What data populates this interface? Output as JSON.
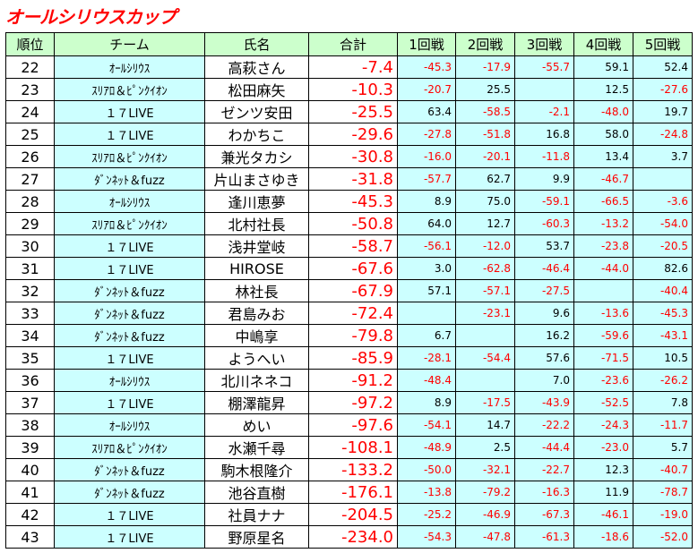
{
  "header": {
    "title": "オールシリウスカップ"
  },
  "table": {
    "columns": [
      "順位",
      "チーム",
      "氏名",
      "合計",
      "1回戦",
      "2回戦",
      "3回戦",
      "4回戦",
      "5回戦"
    ],
    "rows": [
      [
        "22",
        "ｵｰﾙｼﾘｳｽ",
        "高萩さん",
        "-7.4",
        "-45.3",
        "-17.9",
        "-55.7",
        "59.1",
        "52.4"
      ],
      [
        "23",
        "ｽﾘｱﾛ＆ﾋﾟﾝｸｲｵﾝ",
        "松田麻矢",
        "-10.3",
        "-20.7",
        "25.5",
        null,
        "12.5",
        "-27.6"
      ],
      [
        "24",
        "１７LIVE",
        "ゼンツ安田",
        "-25.5",
        "63.4",
        "-58.5",
        "-2.1",
        "-48.0",
        "19.7"
      ],
      [
        "25",
        "１７LIVE",
        "わかちこ",
        "-29.6",
        "-27.8",
        "-51.8",
        "16.8",
        "58.0",
        "-24.8"
      ],
      [
        "26",
        "ｽﾘｱﾛ＆ﾋﾟﾝｸｲｵﾝ",
        "兼光タカシ",
        "-30.8",
        "-16.0",
        "-20.1",
        "-11.8",
        "13.4",
        "3.7"
      ],
      [
        "27",
        "ﾀﾞﾝﾈｯﾄ＆fuzz",
        "片山まさゆき",
        "-31.8",
        "-57.7",
        "62.7",
        "9.9",
        "-46.7",
        null
      ],
      [
        "28",
        "ｵｰﾙｼﾘｳｽ",
        "逢川恵夢",
        "-45.3",
        "8.9",
        "75.0",
        "-59.1",
        "-66.5",
        "-3.6"
      ],
      [
        "29",
        "ｽﾘｱﾛ＆ﾋﾟﾝｸｲｵﾝ",
        "北村社長",
        "-50.8",
        "64.0",
        "12.7",
        "-60.3",
        "-13.2",
        "-54.0"
      ],
      [
        "30",
        "１７LIVE",
        "浅井堂岐",
        "-58.7",
        "-56.1",
        "-12.0",
        "53.7",
        "-23.8",
        "-20.5"
      ],
      [
        "31",
        "１７LIVE",
        "HIROSE",
        "-67.6",
        "3.0",
        "-62.8",
        "-46.4",
        "-44.0",
        "82.6"
      ],
      [
        "32",
        "ﾀﾞﾝﾈｯﾄ＆fuzz",
        "林社長",
        "-67.9",
        "57.1",
        "-57.1",
        "-27.5",
        null,
        "-40.4"
      ],
      [
        "33",
        "ﾀﾞﾝﾈｯﾄ＆fuzz",
        "君島みお",
        "-72.4",
        null,
        "-23.1",
        "9.6",
        "-13.6",
        "-45.3"
      ],
      [
        "34",
        "ﾀﾞﾝﾈｯﾄ＆fuzz",
        "中嶋享",
        "-79.8",
        "6.7",
        null,
        "16.2",
        "-59.6",
        "-43.1"
      ],
      [
        "35",
        "１７LIVE",
        "ようへい",
        "-85.9",
        "-28.1",
        "-54.4",
        "57.6",
        "-71.5",
        "10.5"
      ],
      [
        "36",
        "ｵｰﾙｼﾘｳｽ",
        "北川ネネコ",
        "-91.2",
        "-48.4",
        null,
        "7.0",
        "-23.6",
        "-26.2"
      ],
      [
        "37",
        "１７LIVE",
        "棚澤龍昇",
        "-97.2",
        "8.9",
        "-17.5",
        "-43.9",
        "-52.5",
        "7.8"
      ],
      [
        "38",
        "ｵｰﾙｼﾘｳｽ",
        "めい",
        "-97.6",
        "-54.1",
        "14.7",
        "-22.2",
        "-24.3",
        "-11.7"
      ],
      [
        "39",
        "ｽﾘｱﾛ＆ﾋﾟﾝｸｲｵﾝ",
        "水瀬千尋",
        "-108.1",
        "-48.9",
        "2.5",
        "-44.4",
        "-23.0",
        "5.7"
      ],
      [
        "40",
        "ﾀﾞﾝﾈｯﾄ＆fuzz",
        "駒木根隆介",
        "-133.2",
        "-50.0",
        "-32.1",
        "-22.7",
        "12.3",
        "-40.7"
      ],
      [
        "41",
        "ﾀﾞﾝﾈｯﾄ＆fuzz",
        "池谷直樹",
        "-176.1",
        "-13.8",
        "-79.2",
        "-16.3",
        "11.9",
        "-78.7"
      ],
      [
        "42",
        "１７LIVE",
        "社員ナナ",
        "-204.5",
        "-25.2",
        "-46.9",
        "-67.3",
        "-46.1",
        "-19.0"
      ],
      [
        "43",
        "１７LIVE",
        "野原星名",
        "-234.0",
        "-54.3",
        "-47.8",
        "-61.3",
        "-18.6",
        "-52.0"
      ]
    ]
  }
}
